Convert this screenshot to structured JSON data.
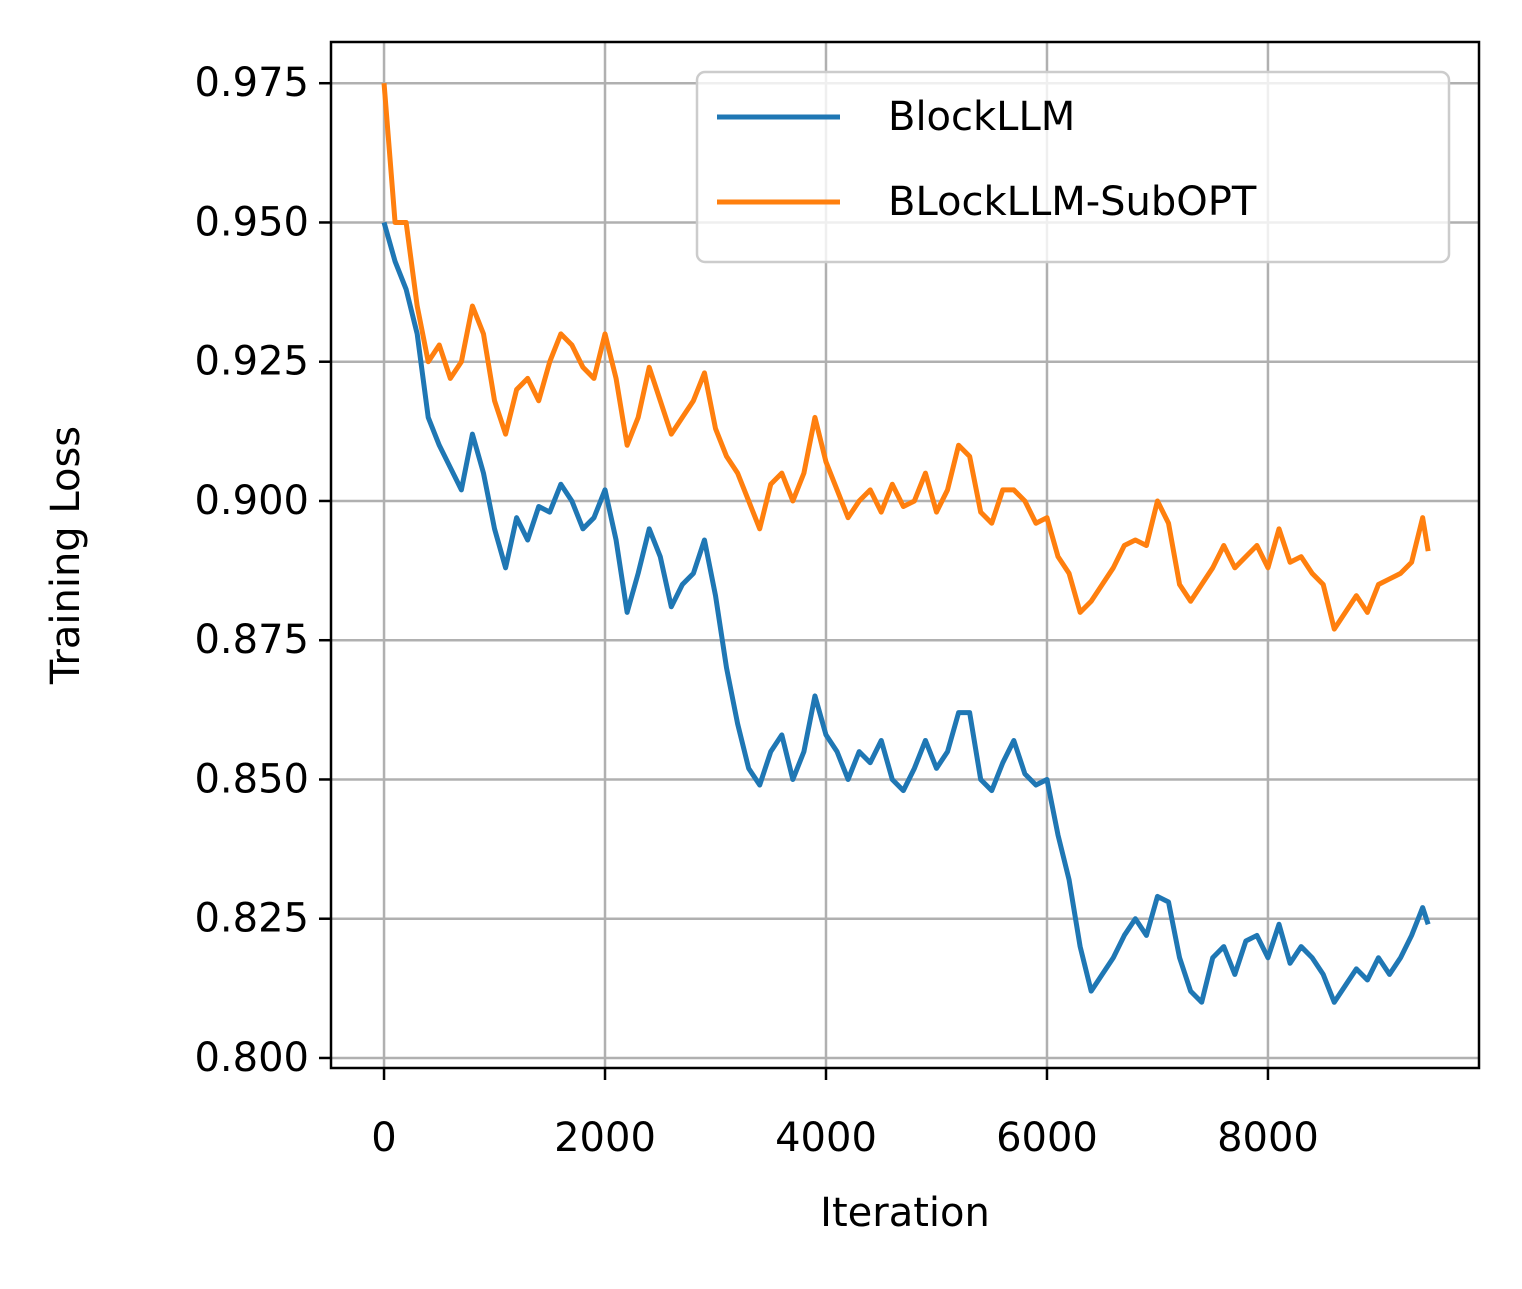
{
  "chart_data": {
    "type": "line",
    "xlabel": "Iteration",
    "ylabel": "Training Loss",
    "x": [
      0,
      100,
      200,
      300,
      400,
      500,
      600,
      700,
      800,
      900,
      1000,
      1100,
      1200,
      1300,
      1400,
      1500,
      1600,
      1700,
      1800,
      1900,
      2000,
      2100,
      2200,
      2300,
      2400,
      2500,
      2600,
      2700,
      2800,
      2900,
      3000,
      3100,
      3200,
      3300,
      3400,
      3500,
      3600,
      3700,
      3800,
      3900,
      4000,
      4100,
      4200,
      4300,
      4400,
      4500,
      4600,
      4700,
      4800,
      4900,
      5000,
      5100,
      5200,
      5300,
      5400,
      5500,
      5600,
      5700,
      5800,
      5900,
      6000,
      6100,
      6200,
      6300,
      6400,
      6500,
      6600,
      6700,
      6800,
      6900,
      7000,
      7100,
      7200,
      7300,
      7400,
      7500,
      7600,
      7700,
      7800,
      7900,
      8000,
      8100,
      8200,
      8300,
      8400,
      8500,
      8600,
      8700,
      8800,
      8900,
      9000,
      9100,
      9200,
      9300,
      9400,
      9450
    ],
    "series": [
      {
        "name": "BlockLLM",
        "color": "#1f77b4",
        "values": [
          0.95,
          0.943,
          0.938,
          0.93,
          0.915,
          0.91,
          0.906,
          0.902,
          0.912,
          0.905,
          0.895,
          0.888,
          0.897,
          0.893,
          0.899,
          0.898,
          0.903,
          0.9,
          0.895,
          0.897,
          0.902,
          0.893,
          0.88,
          0.887,
          0.895,
          0.89,
          0.881,
          0.885,
          0.887,
          0.893,
          0.883,
          0.87,
          0.86,
          0.852,
          0.849,
          0.855,
          0.858,
          0.85,
          0.855,
          0.865,
          0.858,
          0.855,
          0.85,
          0.855,
          0.853,
          0.857,
          0.85,
          0.848,
          0.852,
          0.857,
          0.852,
          0.855,
          0.862,
          0.862,
          0.85,
          0.848,
          0.853,
          0.857,
          0.851,
          0.849,
          0.85,
          0.84,
          0.832,
          0.82,
          0.812,
          0.815,
          0.818,
          0.822,
          0.825,
          0.822,
          0.829,
          0.828,
          0.818,
          0.812,
          0.81,
          0.818,
          0.82,
          0.815,
          0.821,
          0.822,
          0.818,
          0.824,
          0.817,
          0.82,
          0.818,
          0.815,
          0.81,
          0.813,
          0.816,
          0.814,
          0.818,
          0.815,
          0.818,
          0.822,
          0.827,
          0.824
        ]
      },
      {
        "name": "BLockLLM-SubOPT",
        "color": "#ff7f0e",
        "values": [
          0.975,
          0.95,
          0.95,
          0.935,
          0.925,
          0.928,
          0.922,
          0.925,
          0.935,
          0.93,
          0.918,
          0.912,
          0.92,
          0.922,
          0.918,
          0.925,
          0.93,
          0.928,
          0.924,
          0.922,
          0.93,
          0.922,
          0.91,
          0.915,
          0.924,
          0.918,
          0.912,
          0.915,
          0.918,
          0.923,
          0.913,
          0.908,
          0.905,
          0.9,
          0.895,
          0.903,
          0.905,
          0.9,
          0.905,
          0.915,
          0.907,
          0.902,
          0.897,
          0.9,
          0.902,
          0.898,
          0.903,
          0.899,
          0.9,
          0.905,
          0.898,
          0.902,
          0.91,
          0.908,
          0.898,
          0.896,
          0.902,
          0.902,
          0.9,
          0.896,
          0.897,
          0.89,
          0.887,
          0.88,
          0.882,
          0.885,
          0.888,
          0.892,
          0.893,
          0.892,
          0.9,
          0.896,
          0.885,
          0.882,
          0.885,
          0.888,
          0.892,
          0.888,
          0.89,
          0.892,
          0.888,
          0.895,
          0.889,
          0.89,
          0.887,
          0.885,
          0.877,
          0.88,
          0.883,
          0.88,
          0.885,
          0.886,
          0.887,
          0.889,
          0.897,
          0.891
        ]
      }
    ],
    "xlim": [
      -480,
      9910
    ],
    "ylim": [
      0.7982,
      0.9824
    ],
    "xticks": [
      0,
      2000,
      4000,
      6000,
      8000
    ],
    "yticks": [
      {
        "value": 0.8,
        "label": "0.800"
      },
      0.825,
      {
        "value": 0.85,
        "label": "0.850"
      },
      0.875,
      {
        "value": 0.9,
        "label": "0.900"
      },
      0.925,
      {
        "value": 0.95,
        "label": "0.950"
      },
      0.975
    ],
    "grid": true,
    "legend": "upper right"
  }
}
